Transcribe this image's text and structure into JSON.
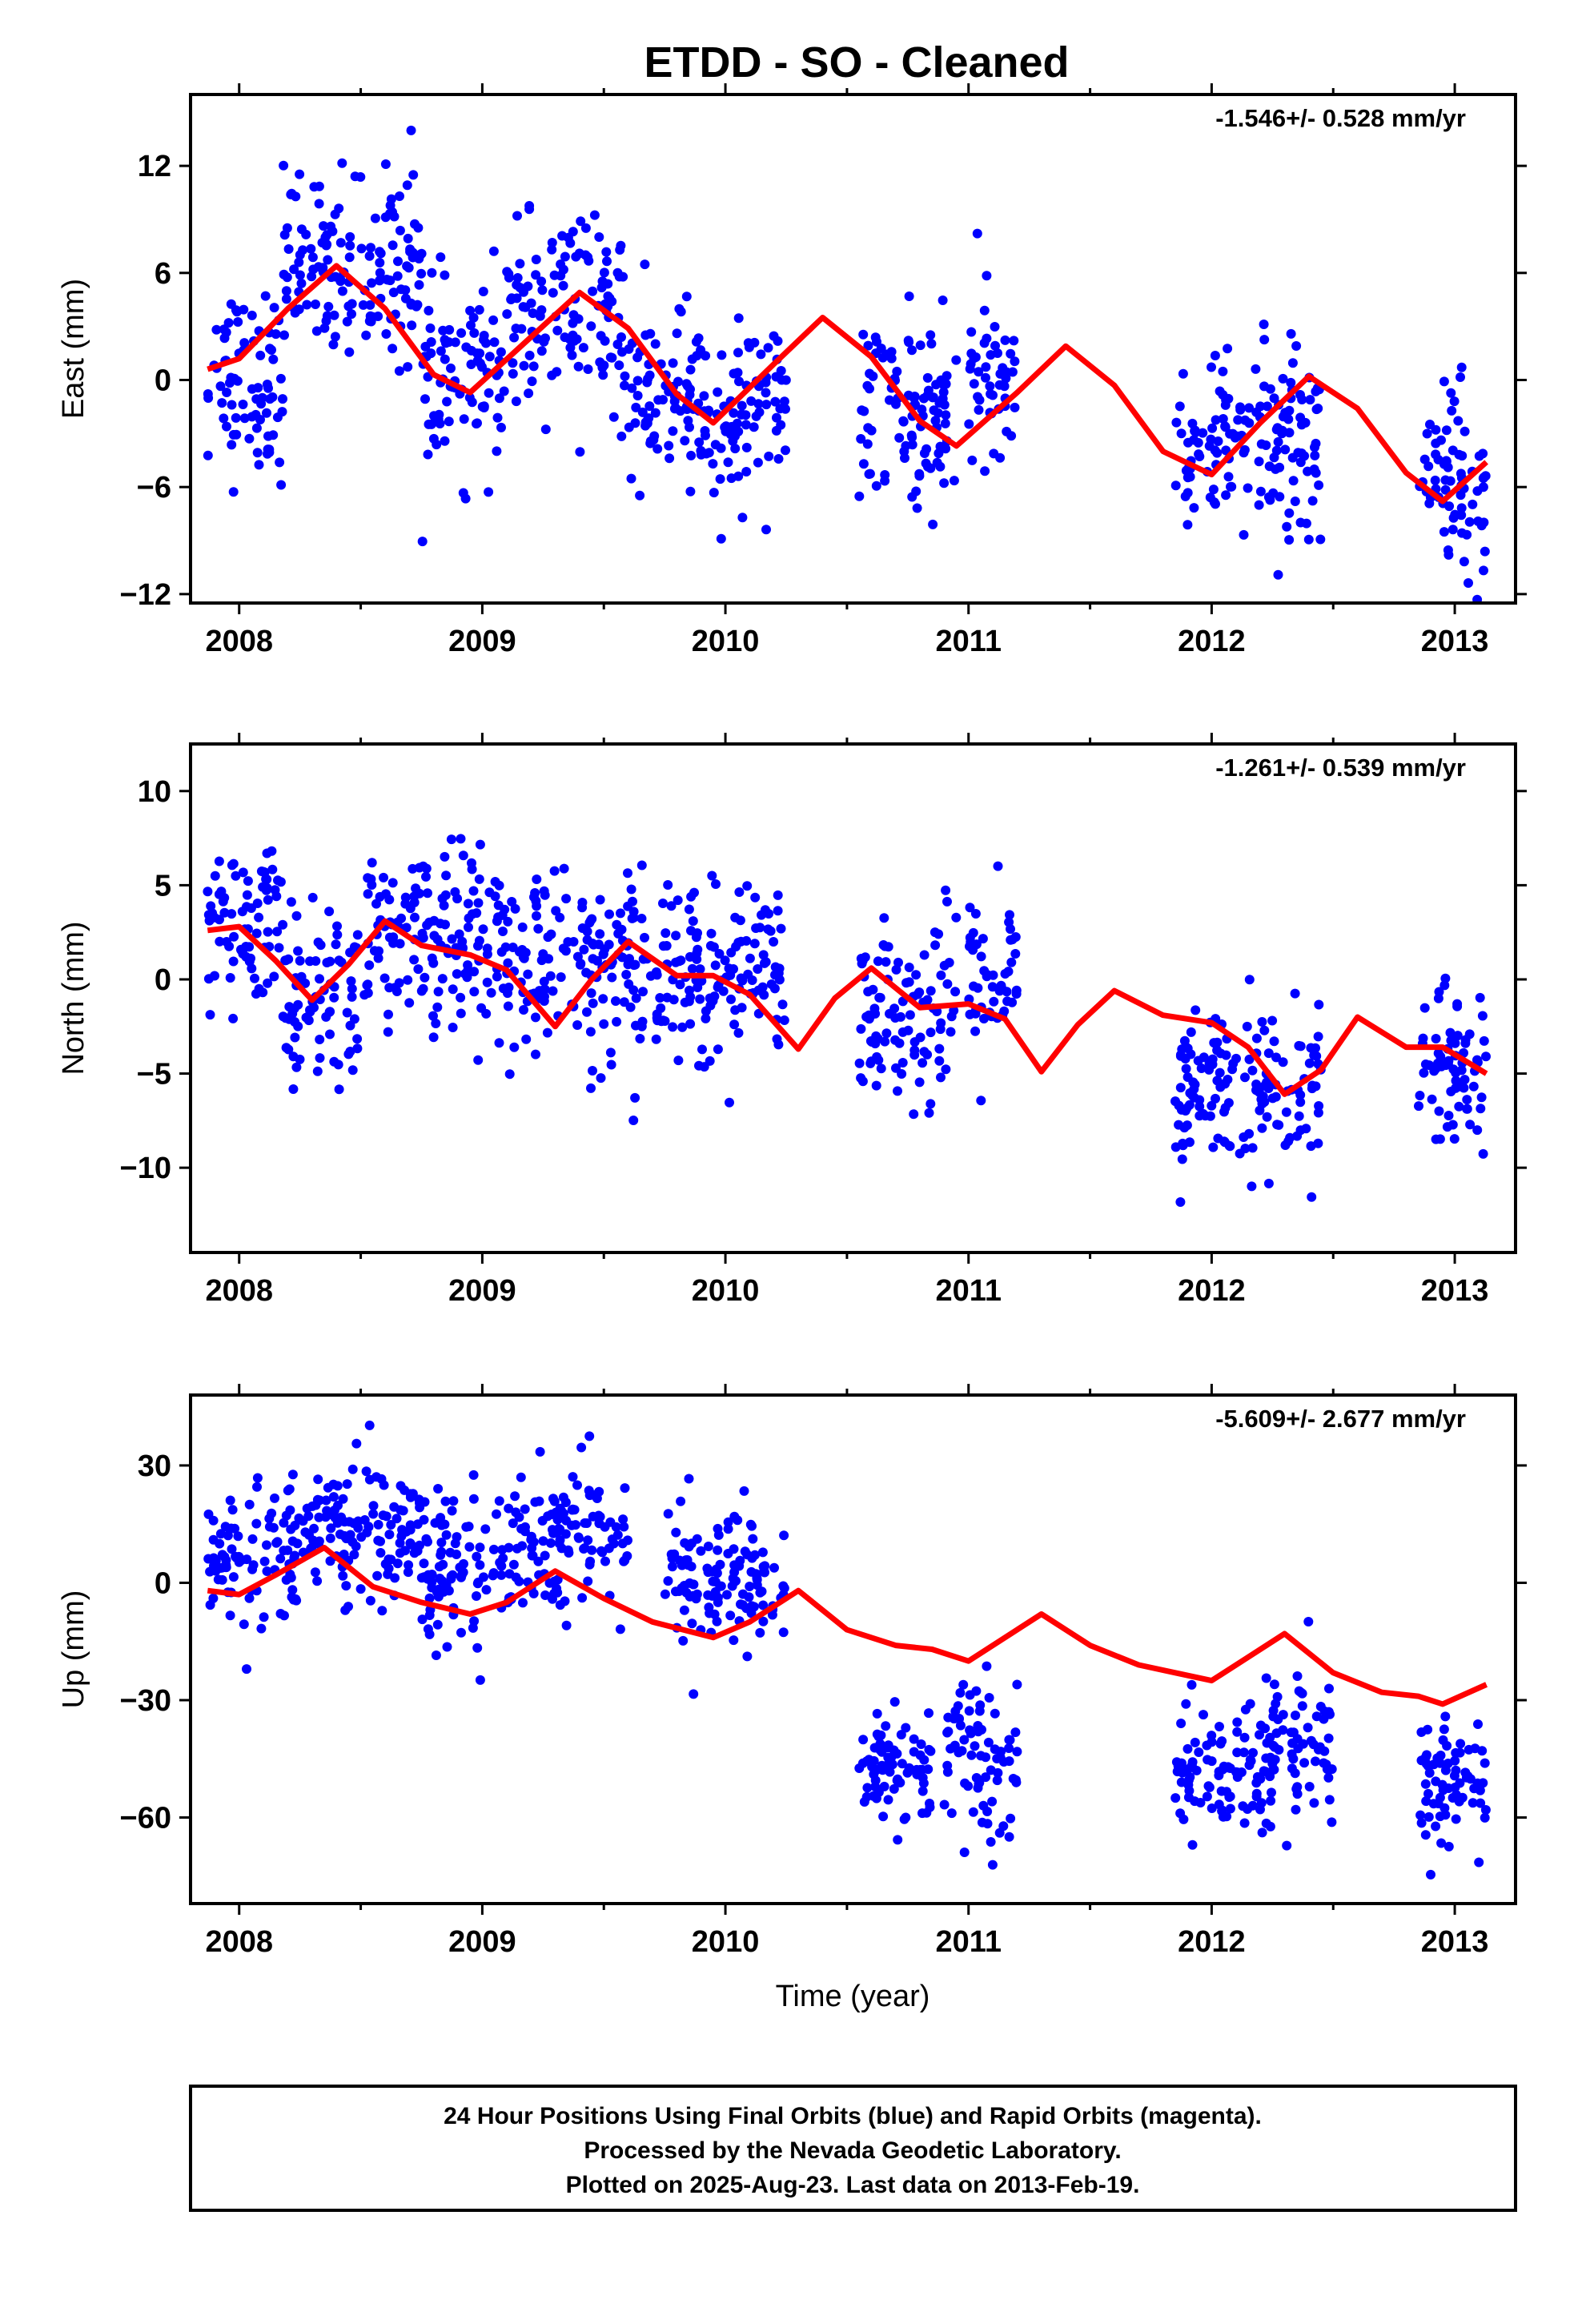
{
  "title": "ETDD  - SO - Cleaned",
  "xlabel": "Time (year)",
  "footer": {
    "line1": "24 Hour Positions Using Final Orbits (blue) and Rapid Orbits (magenta).",
    "line2": "Processed by the Nevada Geodetic Laboratory.",
    "line3": "Plotted on 2025-Aug-23. Last data on 2013-Feb-19."
  },
  "colors": {
    "points": "#0000ff",
    "model": "#ff0000",
    "axes": "#000000"
  },
  "chart_data": [
    {
      "type": "scatter",
      "panel": "east",
      "ylabel": "East (mm)",
      "rate": "-1.546+/- 0.528 mm/yr",
      "xlim": [
        2007.8,
        2013.25
      ],
      "ylim": [
        -12.5,
        16
      ],
      "xticks": [
        2008,
        2009,
        2010,
        2011,
        2012,
        2013
      ],
      "yticks": [
        -12,
        -6,
        0,
        6,
        12
      ],
      "ytick_labels": [
        "−12",
        "−6",
        "0",
        "6",
        "12"
      ],
      "series": [
        {
          "kind": "points",
          "segments": [
            [
              2007.87,
              2008.18,
              0
            ],
            [
              2008.18,
              2008.75,
              6.5
            ],
            [
              2008.75,
              2009.1,
              0
            ],
            [
              2009.1,
              2009.6,
              3.5
            ],
            [
              2009.6,
              2010.25,
              -1.5
            ],
            [
              2010.55,
              2010.95,
              -1.8
            ],
            [
              2011.0,
              2011.2,
              0
            ],
            [
              2011.85,
              2012.45,
              -3.5
            ],
            [
              2012.85,
              2013.13,
              -5.5
            ]
          ],
          "spread": 2.6
        },
        {
          "kind": "line",
          "x": [
            2007.87,
            2008.0,
            2008.2,
            2008.4,
            2008.6,
            2008.8,
            2008.95,
            2009.2,
            2009.4,
            2009.6,
            2009.8,
            2009.95,
            2010.2,
            2010.4,
            2010.6,
            2010.8,
            2010.95,
            2011.2,
            2011.4,
            2011.6,
            2011.8,
            2012.0,
            2012.2,
            2012.4,
            2012.6,
            2012.8,
            2012.95,
            2013.13
          ],
          "y": [
            0.6,
            1.2,
            4.0,
            6.4,
            4.0,
            0.3,
            -0.7,
            2.4,
            4.9,
            2.9,
            -0.8,
            -2.4,
            0.9,
            3.5,
            1.3,
            -2.3,
            -3.7,
            -0.7,
            1.9,
            -0.3,
            -4.0,
            -5.3,
            -2.4,
            0.2,
            -1.6,
            -5.2,
            -6.8,
            -4.6
          ]
        }
      ]
    },
    {
      "type": "scatter",
      "panel": "north",
      "ylabel": "North (mm)",
      "rate": "-1.261+/- 0.539 mm/yr",
      "xlim": [
        2007.8,
        2013.25
      ],
      "ylim": [
        -14.5,
        12.5
      ],
      "xticks": [
        2008,
        2009,
        2010,
        2011,
        2012,
        2013
      ],
      "yticks": [
        -10,
        -5,
        0,
        5,
        10
      ],
      "ytick_labels": [
        "−10",
        "−5",
        "0",
        "5",
        "10"
      ],
      "series": [
        {
          "kind": "points",
          "segments": [
            [
              2007.87,
              2008.18,
              2.5
            ],
            [
              2008.18,
              2008.5,
              -1.0
            ],
            [
              2008.5,
              2009.1,
              2.0
            ],
            [
              2009.1,
              2009.6,
              0.5
            ],
            [
              2009.6,
              2010.25,
              0.5
            ],
            [
              2010.55,
              2010.95,
              -1.5
            ],
            [
              2011.0,
              2011.2,
              -0.5
            ],
            [
              2011.85,
              2012.45,
              -6.0
            ],
            [
              2012.85,
              2013.13,
              -5.0
            ]
          ],
          "spread": 2.4
        },
        {
          "kind": "line",
          "x": [
            2007.87,
            2008.0,
            2008.15,
            2008.3,
            2008.45,
            2008.6,
            2008.75,
            2008.95,
            2009.1,
            2009.3,
            2009.45,
            2009.6,
            2009.8,
            2009.95,
            2010.1,
            2010.3,
            2010.45,
            2010.6,
            2010.8,
            2011.0,
            2011.15,
            2011.3,
            2011.45,
            2011.6,
            2011.8,
            2012.0,
            2012.15,
            2012.3,
            2012.45,
            2012.6,
            2012.8,
            2012.95,
            2013.13
          ],
          "y": [
            2.6,
            2.8,
            1.0,
            -1.1,
            0.8,
            3.1,
            1.8,
            1.3,
            0.5,
            -2.5,
            0.0,
            2.0,
            0.2,
            0.2,
            -0.8,
            -3.7,
            -1.0,
            0.6,
            -1.5,
            -1.3,
            -2.1,
            -4.9,
            -2.4,
            -0.6,
            -1.9,
            -2.3,
            -3.6,
            -6.1,
            -4.8,
            -2.0,
            -3.6,
            -3.6,
            -5.0
          ]
        }
      ]
    },
    {
      "type": "scatter",
      "panel": "up",
      "ylabel": "Up (mm)",
      "rate": "-5.609+/- 2.677 mm/yr",
      "xlim": [
        2007.8,
        2013.25
      ],
      "ylim": [
        -82,
        48
      ],
      "xticks": [
        2008,
        2009,
        2010,
        2011,
        2012,
        2013
      ],
      "yticks": [
        -60,
        -30,
        0,
        30
      ],
      "ytick_labels": [
        "−60",
        "−30",
        "0",
        "30"
      ],
      "series": [
        {
          "kind": "points",
          "segments": [
            [
              2007.87,
              2008.25,
              5
            ],
            [
              2008.25,
              2008.75,
              12
            ],
            [
              2008.75,
              2009.1,
              5
            ],
            [
              2009.1,
              2009.6,
              12
            ],
            [
              2009.75,
              2010.25,
              2
            ],
            [
              2010.55,
              2010.85,
              -47
            ],
            [
              2010.9,
              2011.2,
              -45
            ],
            [
              2011.85,
              2012.25,
              -48
            ],
            [
              2012.25,
              2012.5,
              -42
            ],
            [
              2012.85,
              2013.13,
              -52
            ]
          ],
          "spread": 9
        },
        {
          "kind": "line",
          "x": [
            2007.87,
            2008.0,
            2008.15,
            2008.35,
            2008.55,
            2008.75,
            2008.95,
            2009.1,
            2009.3,
            2009.5,
            2009.7,
            2009.95,
            2010.1,
            2010.3,
            2010.5,
            2010.7,
            2010.85,
            2011.0,
            2011.15,
            2011.3,
            2011.5,
            2011.7,
            2011.85,
            2012.0,
            2012.15,
            2012.3,
            2012.5,
            2012.7,
            2012.85,
            2012.95,
            2013.13
          ],
          "y": [
            -2,
            -3,
            2,
            9,
            -1,
            -5,
            -8,
            -5,
            3,
            -4,
            -10,
            -14,
            -10,
            -2,
            -12,
            -16,
            -17,
            -20,
            -14,
            -8,
            -16,
            -21,
            -23,
            -25,
            -19,
            -13,
            -23,
            -28,
            -29,
            -31,
            -26
          ]
        }
      ]
    }
  ]
}
